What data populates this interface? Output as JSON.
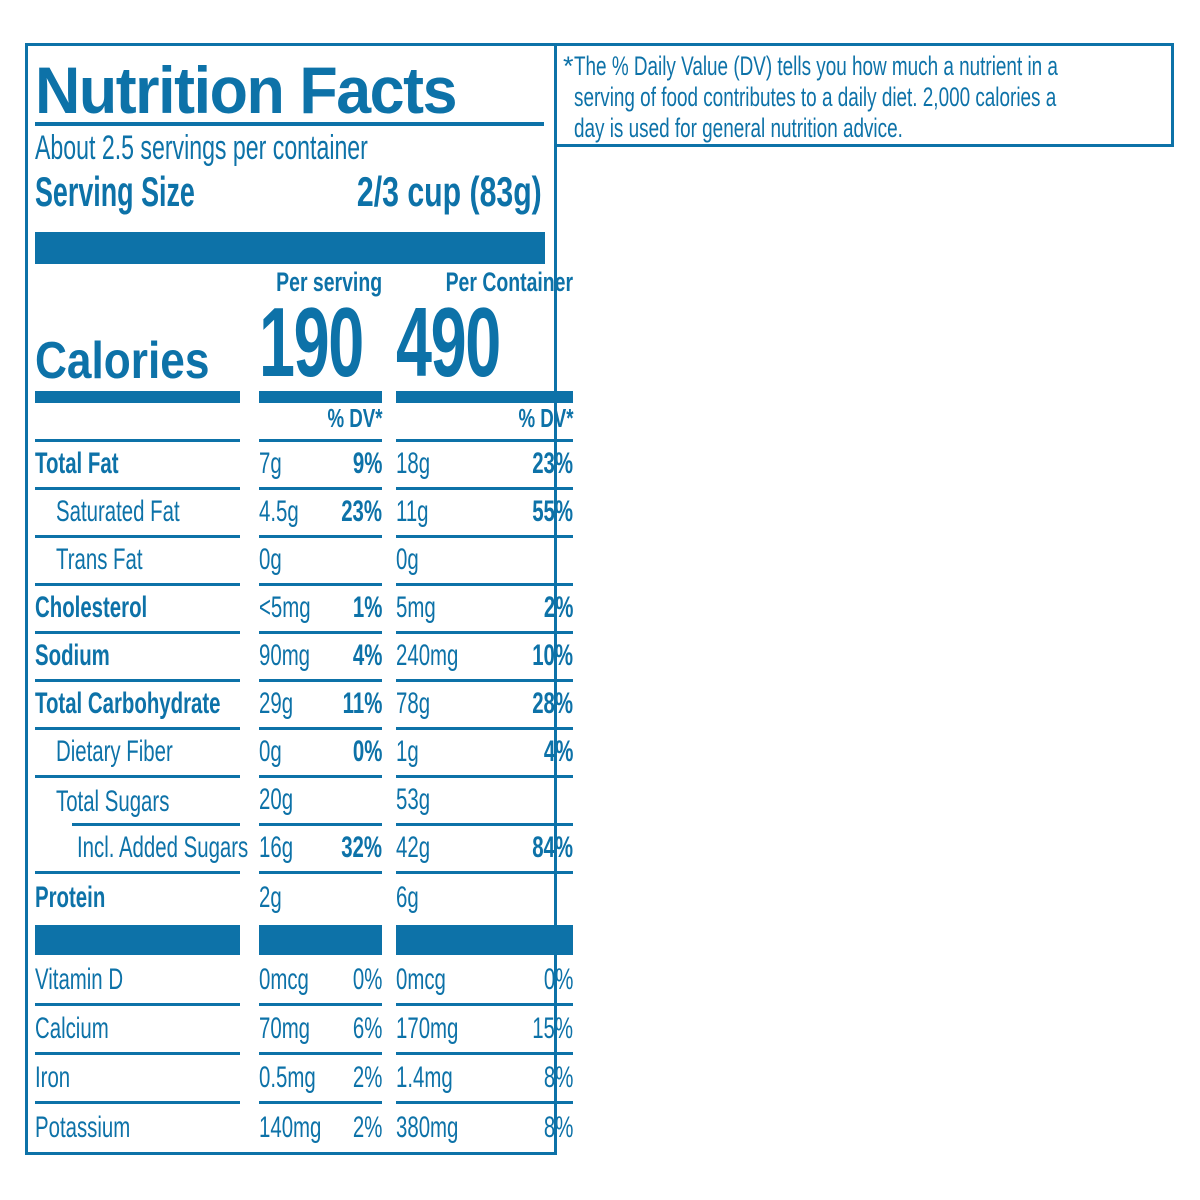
{
  "colors": {
    "blue": "#0d72a8"
  },
  "label": {
    "title": "Nutrition Facts",
    "servings_per_container": "About 2.5 servings per container",
    "serving_size_label": "Serving Size",
    "serving_size_value": "2/3 cup (83g)",
    "calories_label": "Calories",
    "columns": {
      "serving": {
        "header": "Per serving",
        "calories": "190",
        "dv_header": "% DV*"
      },
      "container": {
        "header": "Per Container",
        "calories": "490",
        "dv_header": "% DV*"
      }
    },
    "rows": [
      {
        "name": "Total Fat",
        "serving": {
          "amount": "7g",
          "dv": "9%"
        },
        "container": {
          "amount": "18g",
          "dv": "23%"
        }
      },
      {
        "name": "Saturated Fat",
        "serving": {
          "amount": "4.5g",
          "dv": "23%"
        },
        "container": {
          "amount": "11g",
          "dv": "55%"
        }
      },
      {
        "name": "Trans Fat",
        "serving": {
          "amount": "0g",
          "dv": ""
        },
        "container": {
          "amount": "0g",
          "dv": ""
        }
      },
      {
        "name": "Cholesterol",
        "serving": {
          "amount": "<5mg",
          "dv": "1%"
        },
        "container": {
          "amount": "5mg",
          "dv": "2%"
        }
      },
      {
        "name": "Sodium",
        "serving": {
          "amount": "90mg",
          "dv": "4%"
        },
        "container": {
          "amount": "240mg",
          "dv": "10%"
        }
      },
      {
        "name": "Total Carbohydrate",
        "serving": {
          "amount": "29g",
          "dv": "11%"
        },
        "container": {
          "amount": "78g",
          "dv": "28%"
        }
      },
      {
        "name": "Dietary Fiber",
        "serving": {
          "amount": "0g",
          "dv": "0%"
        },
        "container": {
          "amount": "1g",
          "dv": "4%"
        }
      },
      {
        "name": "Total Sugars",
        "serving": {
          "amount": "20g",
          "dv": ""
        },
        "container": {
          "amount": "53g",
          "dv": ""
        }
      },
      {
        "name": "Incl. Added Sugars",
        "serving": {
          "amount": "16g",
          "dv": "32%"
        },
        "container": {
          "amount": "42g",
          "dv": "84%"
        }
      },
      {
        "name": "Protein",
        "serving": {
          "amount": "2g",
          "dv": ""
        },
        "container": {
          "amount": "6g",
          "dv": ""
        }
      }
    ],
    "micronutrients": [
      {
        "name": "Vitamin D",
        "serving": {
          "amount": "0mcg",
          "dv": "0%"
        },
        "container": {
          "amount": "0mcg",
          "dv": "0%"
        }
      },
      {
        "name": "Calcium",
        "serving": {
          "amount": "70mg",
          "dv": "6%"
        },
        "container": {
          "amount": "170mg",
          "dv": "15%"
        }
      },
      {
        "name": "Iron",
        "serving": {
          "amount": "0.5mg",
          "dv": "2%"
        },
        "container": {
          "amount": "1.4mg",
          "dv": "8%"
        }
      },
      {
        "name": "Potassium",
        "serving": {
          "amount": "140mg",
          "dv": "2%"
        },
        "container": {
          "amount": "380mg",
          "dv": "8%"
        }
      }
    ]
  },
  "footnote": {
    "marker": "*",
    "lines": [
      "The % Daily Value (DV) tells you how much a nutrient in a",
      "serving of food contributes to a daily diet. 2,000 calories a",
      "day is used for general nutrition advice."
    ]
  }
}
